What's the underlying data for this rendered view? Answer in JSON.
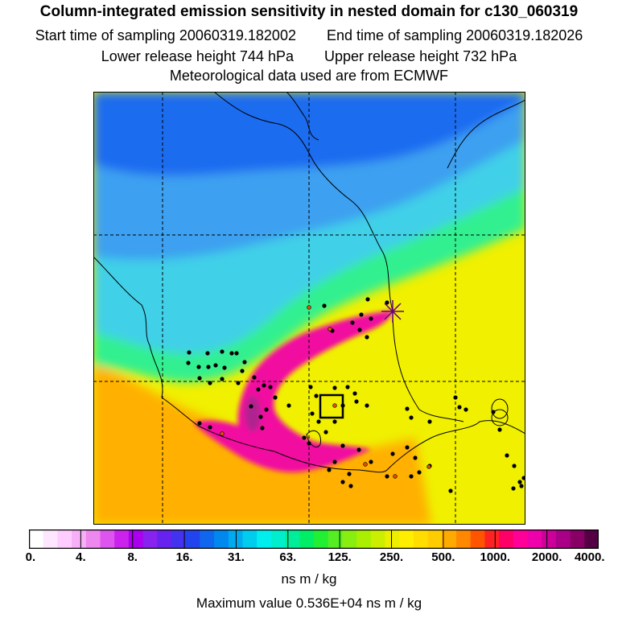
{
  "header": {
    "title": "Column-integrated emission sensitivity in nested domain for c130_060319",
    "start_label": "Start time of sampling",
    "start_value": "20060319.182002",
    "end_label": "End time of sampling",
    "end_value": "20060319.182026",
    "lower_label": "Lower release height",
    "lower_value": "744 hPa",
    "upper_label": "Upper release height",
    "upper_value": "732 hPa",
    "met_line": "Meteorological data used are from ECMWF"
  },
  "colorbar": {
    "ticks": [
      "0.",
      "4.",
      "8.",
      "16.",
      "31.",
      "63.",
      "125.",
      "250.",
      "500.",
      "1000.",
      "2000.",
      "4000."
    ],
    "colors": [
      "#ffffff",
      "#ffe6ff",
      "#ffccff",
      "#f7b0f7",
      "#ee88ee",
      "#dd55ee",
      "#cc22ee",
      "#aa00ee",
      "#8822ee",
      "#6622ee",
      "#4433ee",
      "#2244ee",
      "#1166ee",
      "#0088ee",
      "#00aaee",
      "#00ccee",
      "#00eeee",
      "#00eecc",
      "#00ee99",
      "#00ee66",
      "#22ee33",
      "#55ee22",
      "#88ee11",
      "#aaee00",
      "#ccee00",
      "#eeee00",
      "#ffee00",
      "#ffdd00",
      "#ffcc00",
      "#ffaa00",
      "#ff8800",
      "#ff5500",
      "#ff2222",
      "#ff0066",
      "#ff0099",
      "#ee00aa",
      "#cc0099",
      "#aa0088",
      "#880066",
      "#550044"
    ],
    "units": "ns m / kg",
    "max_label": "Maximum value",
    "max_value": "0.536E+04 ns m / kg"
  },
  "map": {
    "field_colors": {
      "north": "#1a6cf0",
      "north_light": "#3ca0f0",
      "mid": "#40d0e8",
      "band": "#30f090",
      "south": "#f0f000",
      "orange": "#ffb000",
      "plume": "#f010a0",
      "plume_core": "#b0208f"
    },
    "release_marker_icon": "star-icon",
    "receptor_box_icon": "square-outline-icon"
  }
}
